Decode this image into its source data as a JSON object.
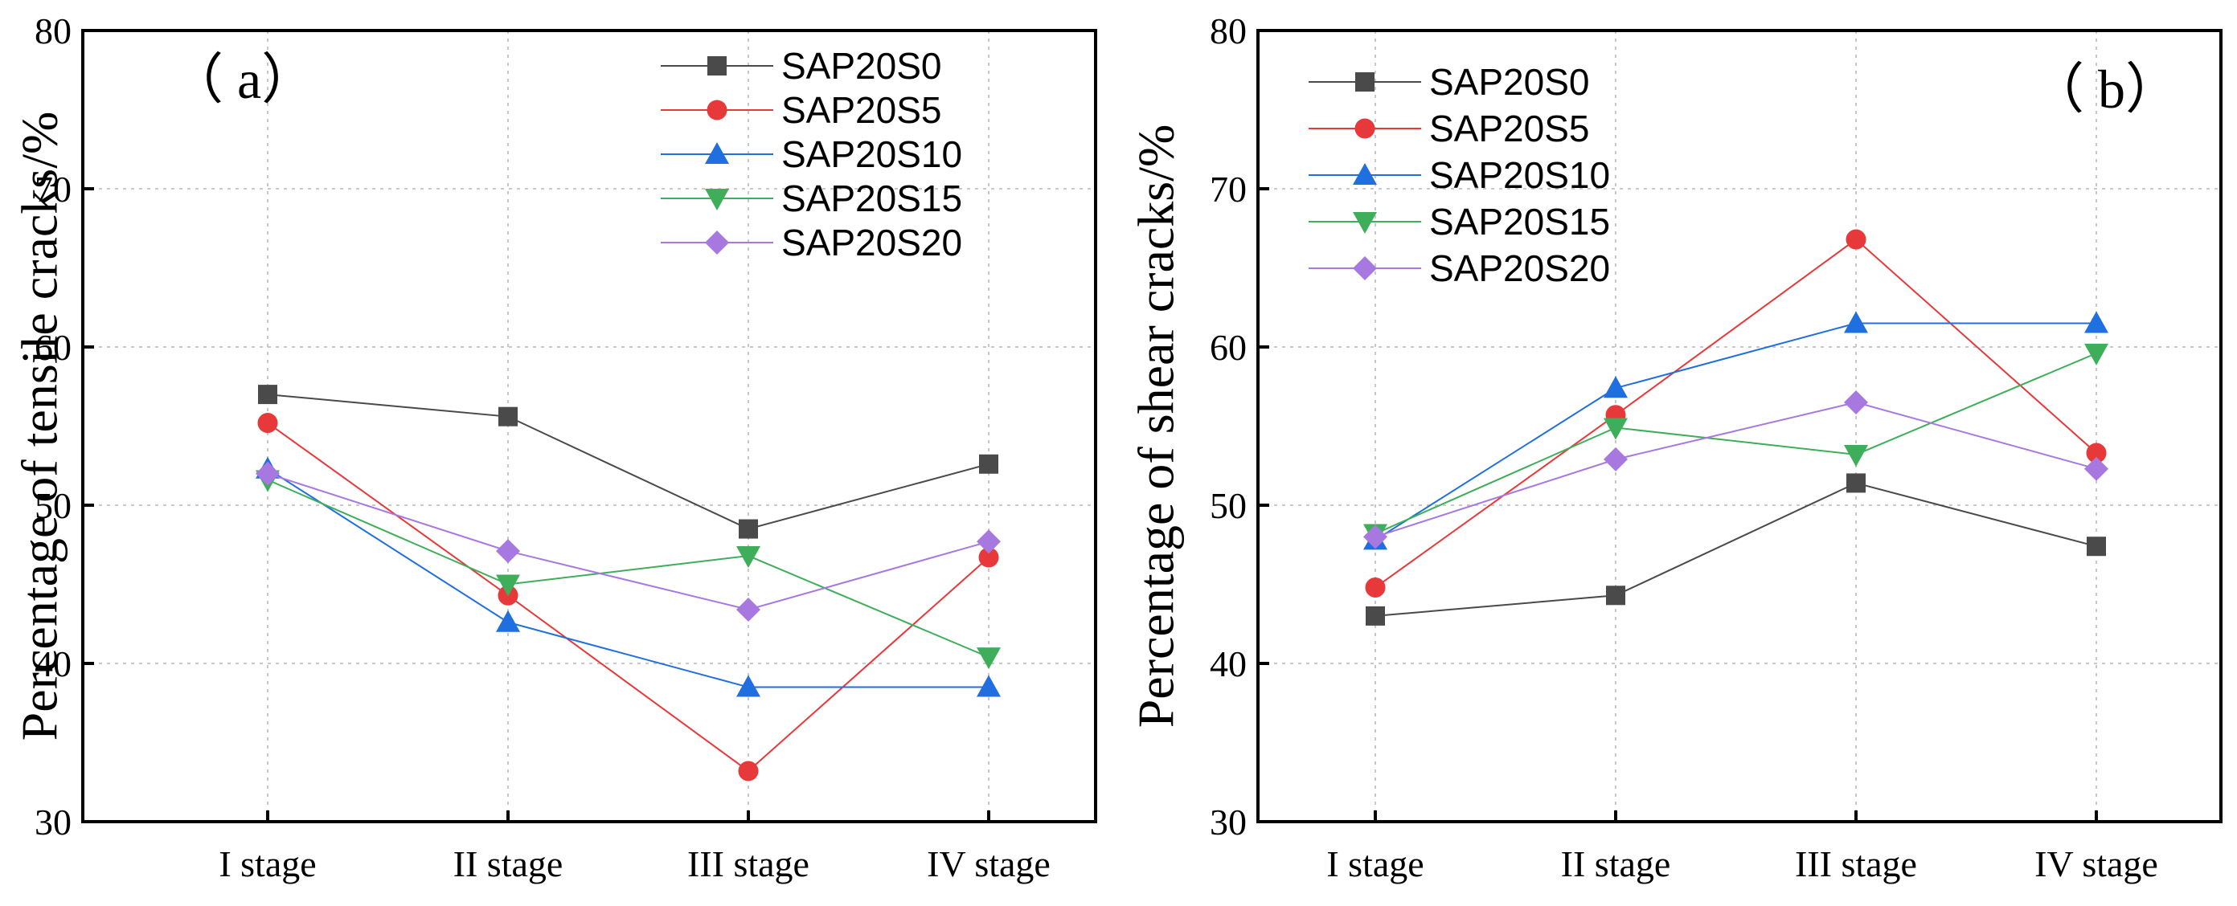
{
  "chart_data": [
    {
      "type": "line",
      "panel_label": "（ a）",
      "title": "",
      "xlabel": "",
      "ylabel": "Percentage of tensile cracks/%",
      "categories": [
        "I stage",
        "II stage",
        "III stage",
        "IV stage"
      ],
      "ylim": [
        30,
        80
      ],
      "yticks": [
        "30",
        "40",
        "50",
        "60",
        "70",
        "80"
      ],
      "grid": true,
      "legend_position": "top-right",
      "series": [
        {
          "name": "SAP20S0",
          "marker": "square",
          "color": "#4a4a4a",
          "values": [
            57.0,
            55.6,
            48.5,
            52.6
          ]
        },
        {
          "name": "SAP20S5",
          "marker": "circle",
          "color": "#e8393a",
          "values": [
            55.2,
            44.3,
            33.2,
            46.7
          ]
        },
        {
          "name": "SAP20S10",
          "marker": "triangle-up",
          "color": "#1f6fe0",
          "values": [
            52.3,
            42.6,
            38.5,
            38.5
          ]
        },
        {
          "name": "SAP20S15",
          "marker": "triangle-down",
          "color": "#3fae5a",
          "values": [
            51.6,
            45.0,
            46.8,
            40.4
          ]
        },
        {
          "name": "SAP20S20",
          "marker": "diamond",
          "color": "#a778e0",
          "values": [
            52.0,
            47.1,
            43.4,
            47.7
          ]
        }
      ]
    },
    {
      "type": "line",
      "panel_label": "（ b）",
      "title": "",
      "xlabel": "",
      "ylabel": "Percentage of shear cracks/%",
      "categories": [
        "I stage",
        "II stage",
        "III stage",
        "IV stage"
      ],
      "ylim": [
        30,
        80
      ],
      "yticks": [
        "30",
        "40",
        "50",
        "60",
        "70",
        "80"
      ],
      "grid": true,
      "legend_position": "top-left",
      "series": [
        {
          "name": "SAP20S0",
          "marker": "square",
          "color": "#4a4a4a",
          "values": [
            43.0,
            44.3,
            51.4,
            47.4
          ]
        },
        {
          "name": "SAP20S5",
          "marker": "circle",
          "color": "#e8393a",
          "values": [
            44.8,
            55.7,
            66.8,
            53.3
          ]
        },
        {
          "name": "SAP20S10",
          "marker": "triangle-up",
          "color": "#1f6fe0",
          "values": [
            47.8,
            57.4,
            61.5,
            61.5
          ]
        },
        {
          "name": "SAP20S15",
          "marker": "triangle-down",
          "color": "#3fae5a",
          "values": [
            48.2,
            54.9,
            53.2,
            59.6
          ]
        },
        {
          "name": "SAP20S20",
          "marker": "diamond",
          "color": "#a778e0",
          "values": [
            48.0,
            52.9,
            56.5,
            52.3
          ]
        }
      ]
    }
  ]
}
